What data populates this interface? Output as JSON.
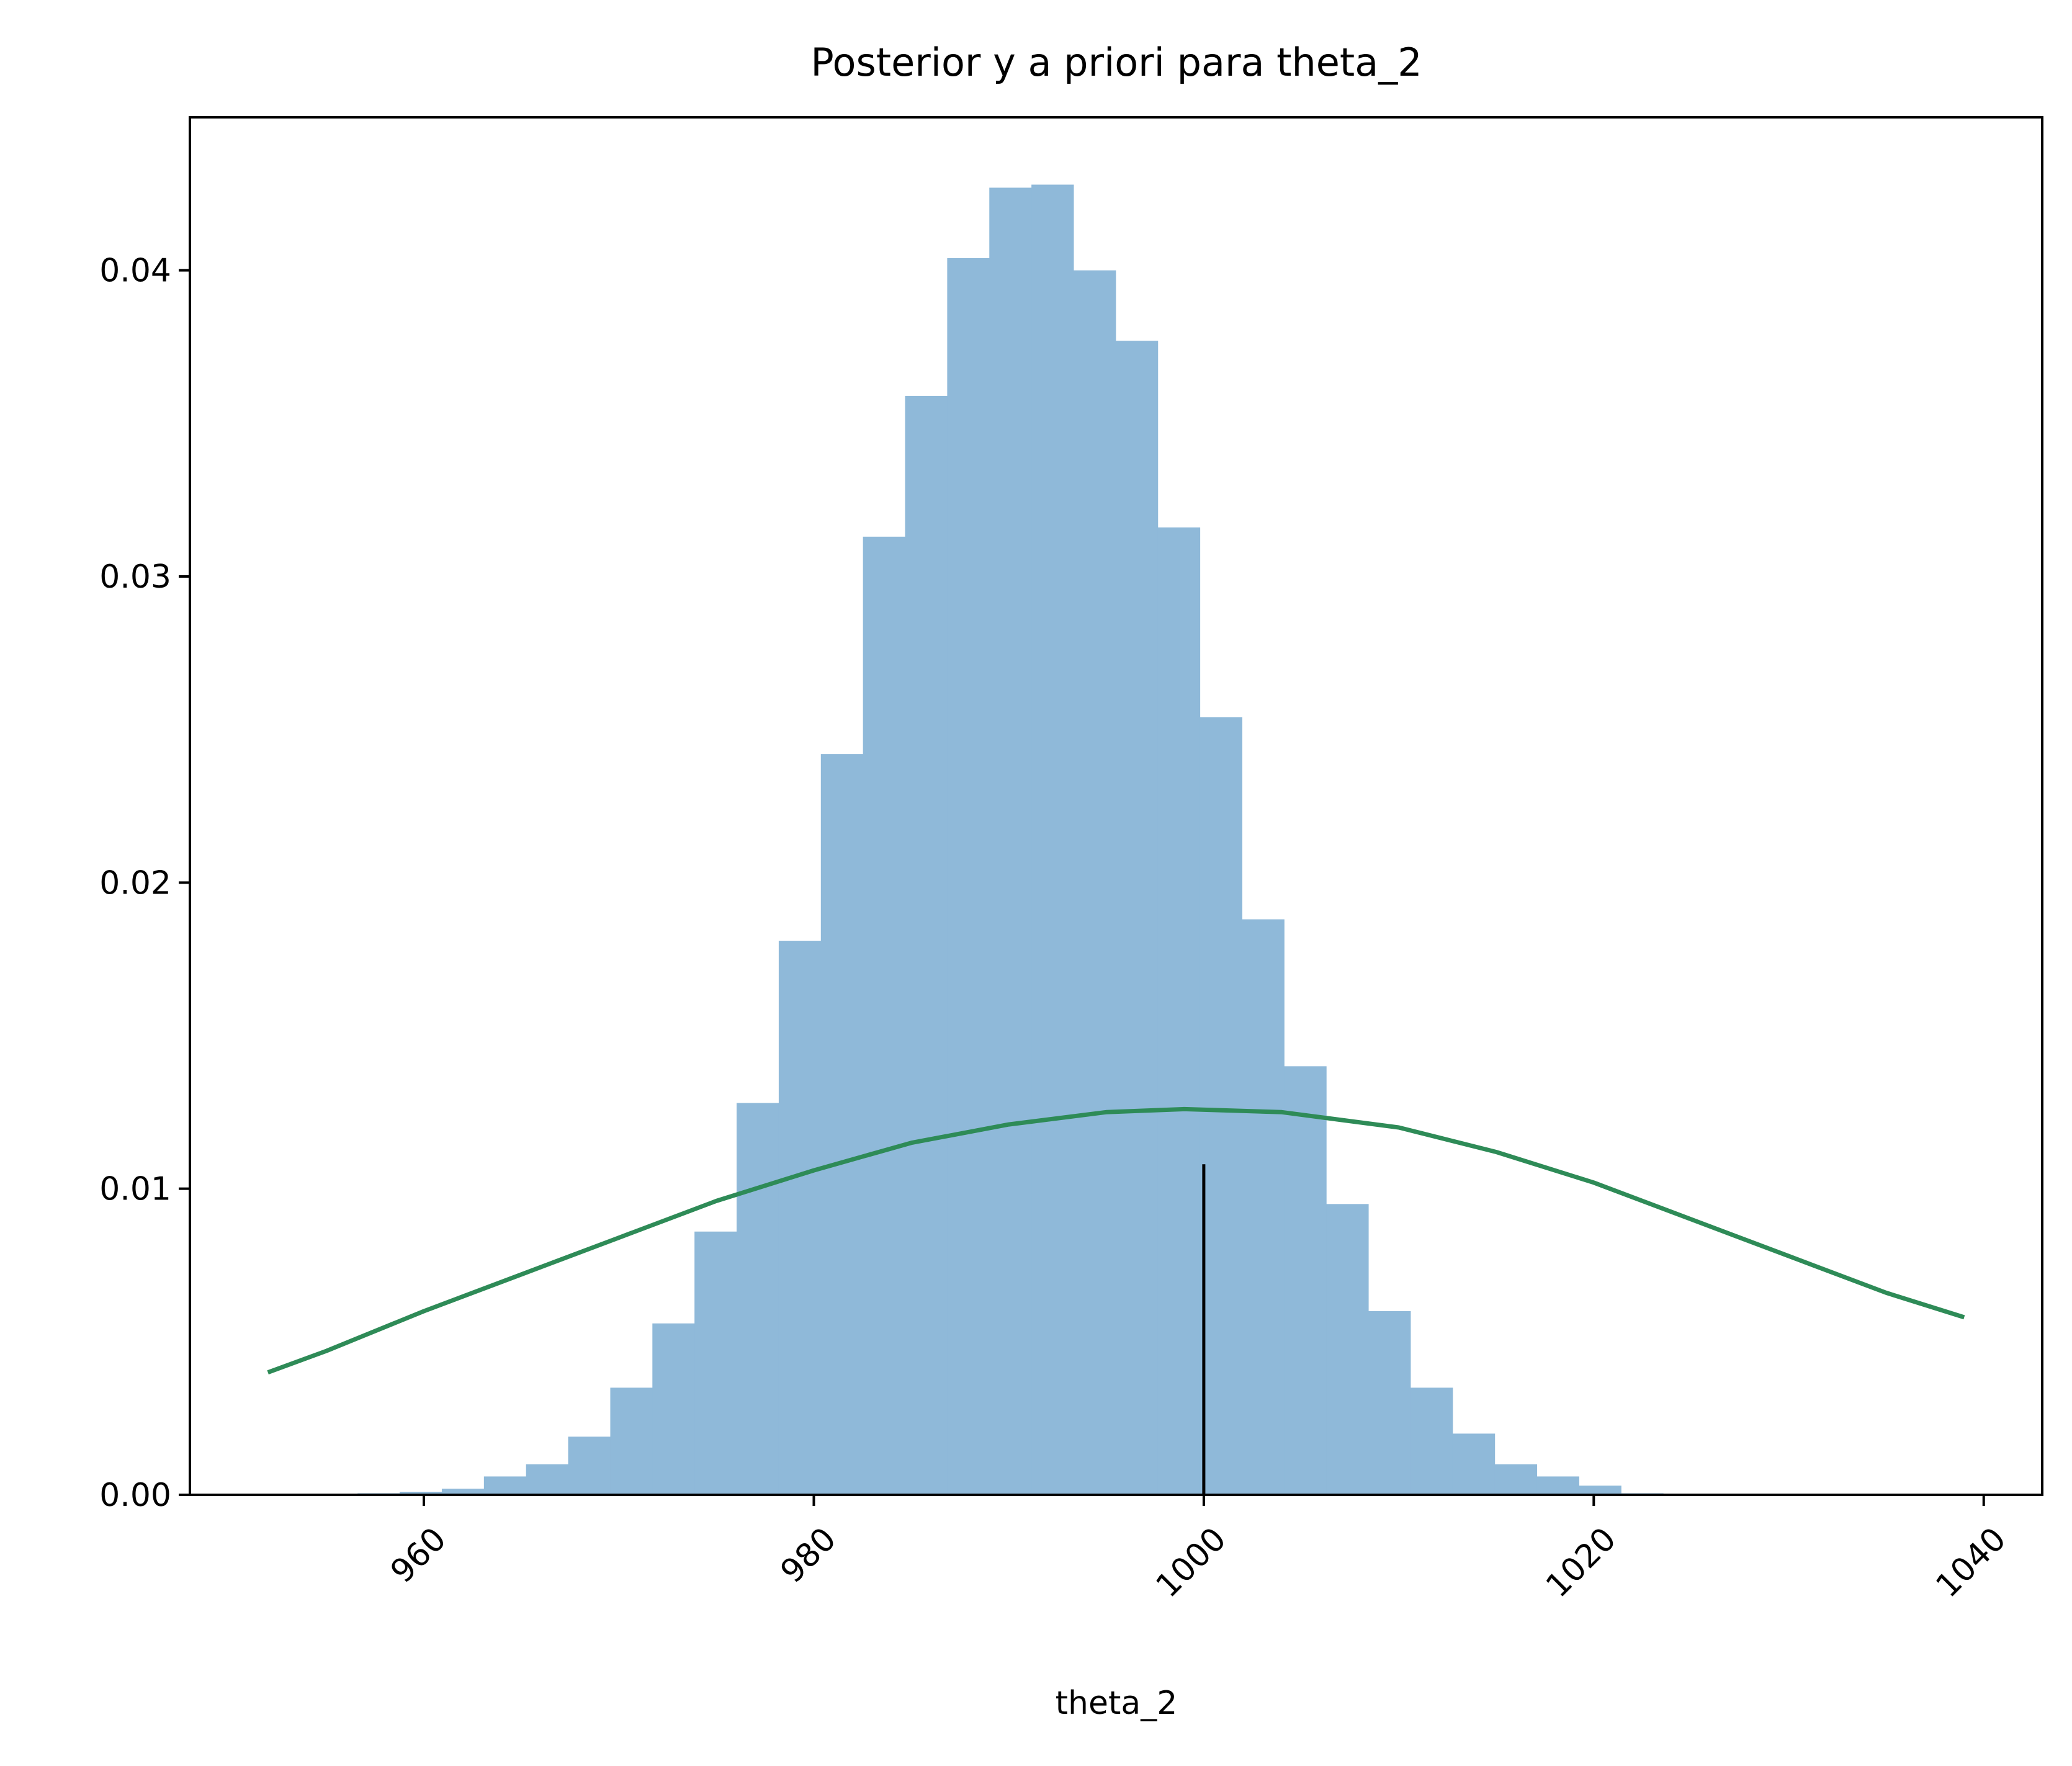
{
  "chart_data": {
    "type": "bar",
    "title": "Posterior y a priori para theta_2",
    "xlabel": "theta_2",
    "ylabel": "",
    "xlim": [
      948,
      1043
    ],
    "ylim": [
      0,
      0.045
    ],
    "grid": false,
    "legend": "none",
    "x_ticks": [
      960,
      980,
      1000,
      1020,
      1040
    ],
    "x_tick_labels": [
      "960",
      "980",
      "1000",
      "1020",
      "1040"
    ],
    "y_ticks": [
      0,
      0.01,
      0.02,
      0.03,
      0.04
    ],
    "y_tick_labels": [
      "0.00",
      "0.01",
      "0.02",
      "0.03",
      "0.04"
    ],
    "histogram": {
      "color": "#8fb9d9",
      "bin_edges": [
        956.6,
        958.76,
        960.92,
        963.08,
        965.24,
        967.4,
        969.56,
        971.72,
        973.88,
        976.04,
        978.2,
        980.36,
        982.52,
        984.68,
        986.84,
        989.0,
        991.16,
        993.32,
        995.48,
        997.64,
        999.8,
        1001.96,
        1004.12,
        1006.28,
        1008.44,
        1010.6,
        1012.76,
        1014.92,
        1017.08,
        1019.24,
        1021.4,
        1023.56
      ],
      "densities": [
        5e-05,
        0.0001,
        0.0002,
        0.0006,
        0.001,
        0.0019,
        0.0035,
        0.0056,
        0.0086,
        0.0128,
        0.0181,
        0.0242,
        0.0313,
        0.0359,
        0.0404,
        0.0427,
        0.0428,
        0.04,
        0.0377,
        0.0316,
        0.0254,
        0.0188,
        0.014,
        0.0095,
        0.006,
        0.0035,
        0.002,
        0.001,
        0.0006,
        0.0003,
        5e-05
      ]
    },
    "prior_curve": {
      "color": "#2e8b57",
      "x": [
        952,
        955,
        960,
        965,
        970,
        975,
        980,
        985,
        990,
        995,
        999,
        1004,
        1010,
        1015,
        1020,
        1025,
        1030,
        1035,
        1039
      ],
      "y": [
        0.004,
        0.0047,
        0.006,
        0.0072,
        0.0084,
        0.0096,
        0.0106,
        0.0115,
        0.0121,
        0.0125,
        0.0126,
        0.0125,
        0.012,
        0.0112,
        0.0102,
        0.009,
        0.0078,
        0.0066,
        0.0058
      ]
    },
    "reference_line": {
      "color": "#000000",
      "x": 1000,
      "y_top": 0.0108
    }
  }
}
